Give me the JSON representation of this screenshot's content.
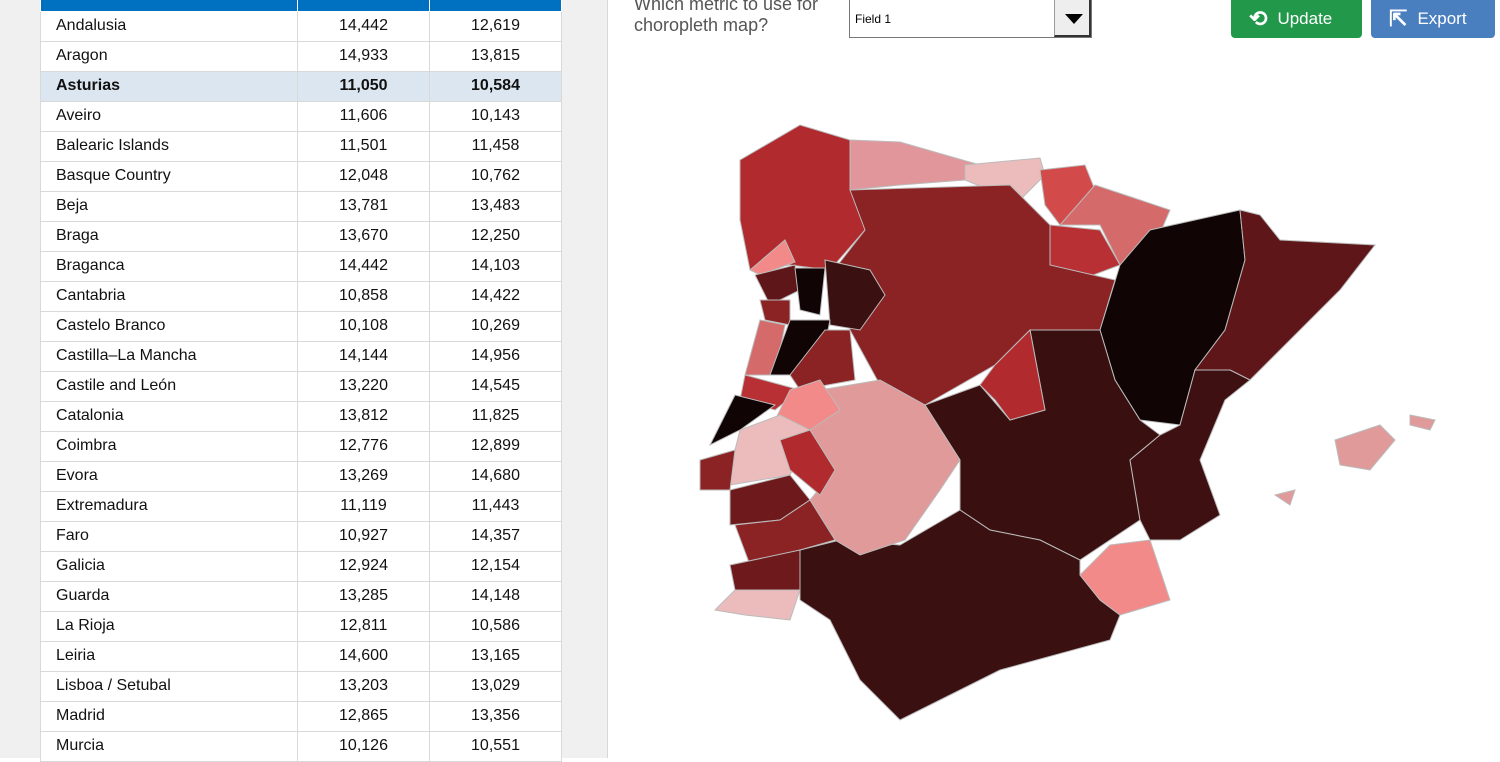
{
  "table": {
    "columns": [
      "",
      "",
      ""
    ],
    "selected_row": "Asturias",
    "rows": [
      [
        "Andalusia",
        "14,442",
        "12,619"
      ],
      [
        "Aragon",
        "14,933",
        "13,815"
      ],
      [
        "Asturias",
        "11,050",
        "10,584"
      ],
      [
        "Aveiro",
        "11,606",
        "10,143"
      ],
      [
        "Balearic Islands",
        "11,501",
        "11,458"
      ],
      [
        "Basque Country",
        "12,048",
        "10,762"
      ],
      [
        "Beja",
        "13,781",
        "13,483"
      ],
      [
        "Braga",
        "13,670",
        "12,250"
      ],
      [
        "Braganca",
        "14,442",
        "14,103"
      ],
      [
        "Cantabria",
        "10,858",
        "14,422"
      ],
      [
        "Castelo Branco",
        "10,108",
        "10,269"
      ],
      [
        "Castilla–La Mancha",
        "14,144",
        "14,956"
      ],
      [
        "Castile and León",
        "13,220",
        "14,545"
      ],
      [
        "Catalonia",
        "13,812",
        "11,825"
      ],
      [
        "Coimbra",
        "12,776",
        "12,899"
      ],
      [
        "Evora",
        "13,269",
        "14,680"
      ],
      [
        "Extremadura",
        "11,119",
        "11,443"
      ],
      [
        "Faro",
        "10,927",
        "14,357"
      ],
      [
        "Galicia",
        "12,924",
        "12,154"
      ],
      [
        "Guarda",
        "13,285",
        "14,148"
      ],
      [
        "La Rioja",
        "12,811",
        "10,586"
      ],
      [
        "Leiria",
        "14,600",
        "13,165"
      ],
      [
        "Lisboa / Setubal",
        "13,203",
        "13,029"
      ],
      [
        "Madrid",
        "12,865",
        "13,356"
      ],
      [
        "Murcia",
        "10,126",
        "10,551"
      ]
    ]
  },
  "controls": {
    "question": "Which metric to use for choropleth map?",
    "metric_selected": "Field 1",
    "update_label": "Update",
    "export_label": "Export",
    "update_color": "#22994a",
    "export_color": "#4a7fbf"
  },
  "map": {
    "border_color": "#bbbbbb",
    "fills": {
      "Galicia": "#b02a2e",
      "Asturias": "#e0969a",
      "Cantabria": "#ecbcbc",
      "Basque Country": "#d24a4a",
      "Navarre": "#d46a6a",
      "La Rioja": "#b83034",
      "Castile and León": "#8b2224",
      "Aragon": "#100404",
      "Catalonia": "#5e1618",
      "Madrid": "#b02a2e",
      "Castilla–La Mancha": "#3a0f10",
      "Valencia": "#3e1011",
      "Murcia": "#f28a8a",
      "Andalusia": "#3a1011",
      "Extremadura": "#e09a9a",
      "Viana do Castelo": "#f28a8a",
      "Braga": "#5e1618",
      "Porto": "#8b2224",
      "Vila Real": "#100404",
      "Braganca": "#3a1011",
      "Aveiro": "#d46a6a",
      "Viseu": "#100404",
      "Guarda": "#8b2224",
      "Coimbra": "#b83034",
      "Castelo Branco": "#f28a8a",
      "Leiria": "#100404",
      "Santarem": "#ecbcbc",
      "Portalegre": "#b02a2e",
      "Lisboa": "#8b2224",
      "Setubal": "#6e1a1c",
      "Evora": "#8b2224",
      "Beja": "#6e1a1c",
      "Faro": "#ecbcbc",
      "Balearic Islands": "#e09a9a"
    }
  }
}
